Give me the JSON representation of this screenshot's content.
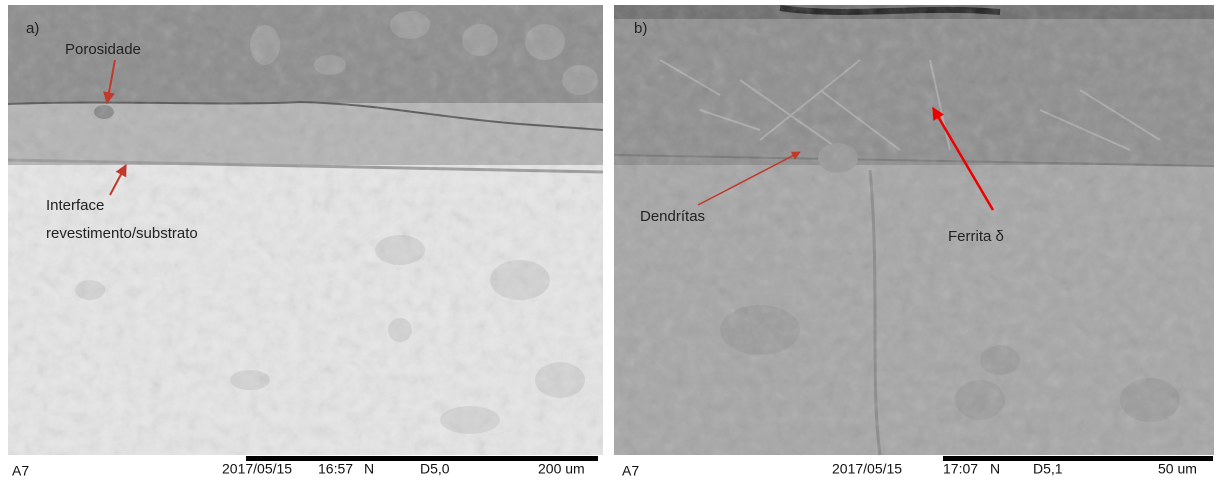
{
  "panels": [
    {
      "label": "a)",
      "annotations": [
        {
          "lines": [
            "Porosidade"
          ]
        },
        {
          "lines": [
            "Interface",
            "revestimento/substrato"
          ]
        }
      ],
      "info": {
        "id": "A7",
        "date": "2017/05/15",
        "time": "16:57",
        "mode": "N",
        "wd": "D5,0",
        "scale": "200 um"
      }
    },
    {
      "label": "b)",
      "annotations": [
        {
          "lines": [
            "Dendrítas"
          ]
        },
        {
          "lines": [
            "Ferrita δ"
          ]
        }
      ],
      "info": {
        "id": "A7",
        "date": "2017/05/15",
        "time": "17:07",
        "mode": "N",
        "wd": "D5,1",
        "scale": "50 um"
      }
    }
  ]
}
